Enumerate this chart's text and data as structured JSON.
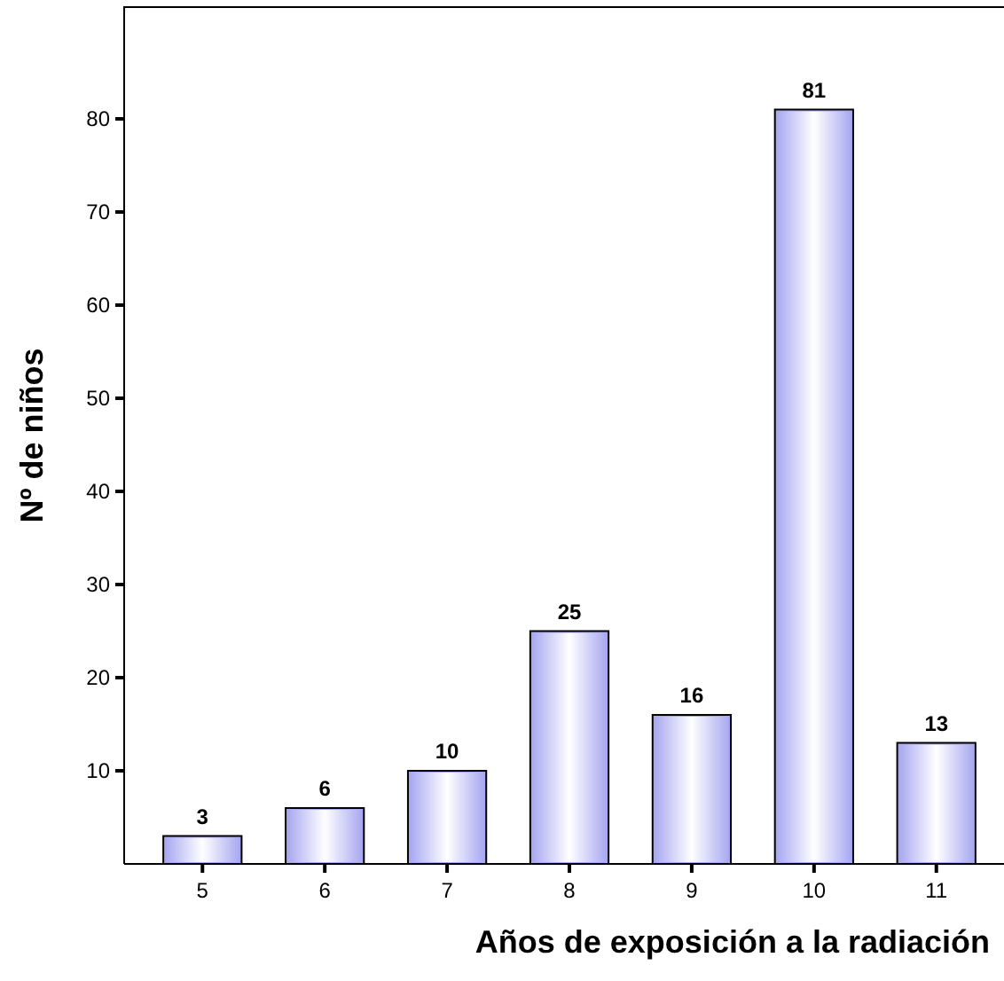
{
  "chart_data": {
    "type": "bar",
    "xlabel": "Años de exposición a la radiación",
    "ylabel": "Nº de niños",
    "categories": [
      "5",
      "6",
      "7",
      "8",
      "9",
      "10",
      "11"
    ],
    "values": [
      3,
      6,
      10,
      25,
      16,
      81,
      13
    ],
    "color": "#a8a8f0",
    "ylim": [
      0,
      92
    ],
    "yticks": [
      10,
      20,
      30,
      40,
      50,
      60,
      70,
      80
    ],
    "grid": false,
    "data_labels": true
  }
}
